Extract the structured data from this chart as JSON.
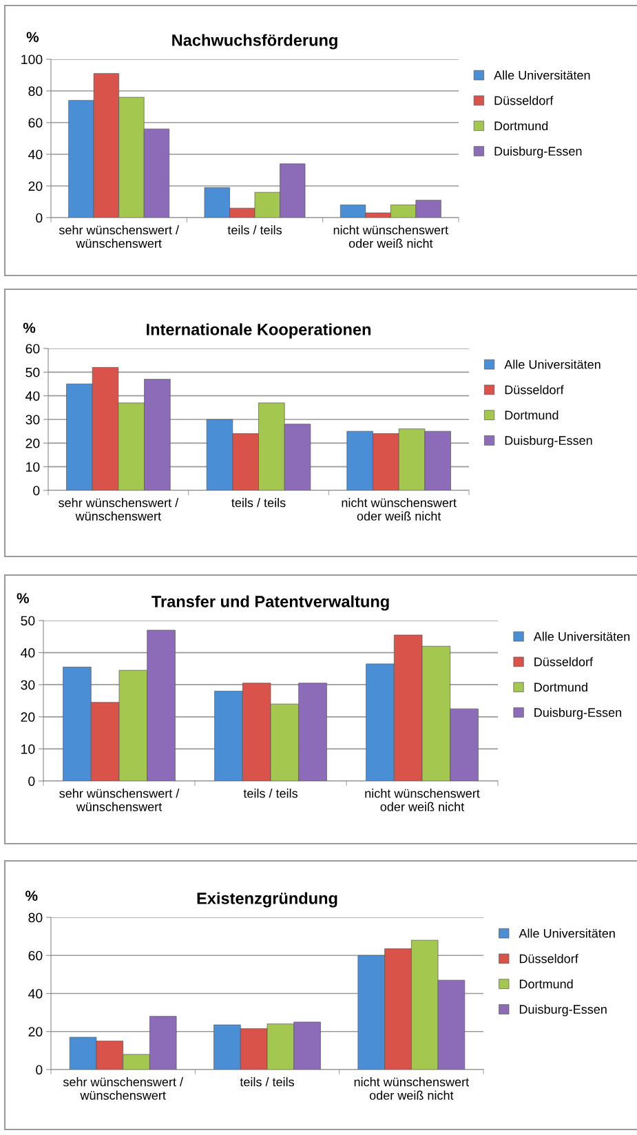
{
  "chart_data": [
    {
      "type": "bar",
      "title": "Nachwuchsförderung",
      "ylabel": "%",
      "categories": [
        "sehr wünschenswert /\nwünschenswert",
        "teils / teils",
        "nicht wünschenswert\noder weiß nicht"
      ],
      "series": [
        {
          "name": "Alle Universitäten",
          "color": "#4a8fd6",
          "values": [
            74,
            19,
            8
          ]
        },
        {
          "name": "Düsseldorf",
          "color": "#d9534a",
          "values": [
            91,
            6,
            3
          ]
        },
        {
          "name": "Dortmund",
          "color": "#a4c74f",
          "values": [
            76,
            16,
            8
          ]
        },
        {
          "name": "Duisburg-Essen",
          "color": "#8c6bb8",
          "values": [
            56,
            34,
            11
          ]
        }
      ],
      "ylim": [
        0,
        100
      ],
      "yticks": [
        0,
        20,
        40,
        60,
        80,
        100
      ],
      "grid": "y",
      "legend": "right"
    },
    {
      "type": "bar",
      "title": "Internationale Kooperationen",
      "ylabel": "%",
      "categories": [
        "sehr wünschenswert /\nwünschenswert",
        "teils / teils",
        "nicht wünschenswert\noder weiß nicht"
      ],
      "series": [
        {
          "name": "Alle Universitäten",
          "color": "#4a8fd6",
          "values": [
            45,
            30,
            25
          ]
        },
        {
          "name": "Düsseldorf",
          "color": "#d9534a",
          "values": [
            52,
            24,
            24
          ]
        },
        {
          "name": "Dortmund",
          "color": "#a4c74f",
          "values": [
            37,
            37,
            26
          ]
        },
        {
          "name": "Duisburg-Essen",
          "color": "#8c6bb8",
          "values": [
            47,
            28,
            25
          ]
        }
      ],
      "ylim": [
        0,
        60
      ],
      "yticks": [
        0,
        10,
        20,
        30,
        40,
        50,
        60
      ],
      "grid": "y",
      "legend": "right"
    },
    {
      "type": "bar",
      "title": "Transfer und Patentverwaltung",
      "ylabel": "%",
      "categories": [
        "sehr wünschenswert /\nwünschenswert",
        "teils / teils",
        "nicht wünschenswert\noder weiß nicht"
      ],
      "series": [
        {
          "name": "Alle Universitäten",
          "color": "#4a8fd6",
          "values": [
            35.5,
            28,
            36.5
          ]
        },
        {
          "name": "Düsseldorf",
          "color": "#d9534a",
          "values": [
            24.5,
            30.5,
            45.5
          ]
        },
        {
          "name": "Dortmund",
          "color": "#a4c74f",
          "values": [
            34.5,
            24,
            42
          ]
        },
        {
          "name": "Duisburg-Essen",
          "color": "#8c6bb8",
          "values": [
            47,
            30.5,
            22.5
          ]
        }
      ],
      "ylim": [
        0,
        50
      ],
      "yticks": [
        0,
        10,
        20,
        30,
        40,
        50
      ],
      "grid": "y",
      "legend": "right"
    },
    {
      "type": "bar",
      "title": "Existenzgründung",
      "ylabel": "%",
      "categories": [
        "sehr wünschenswert /\nwünschenswert",
        "teils / teils",
        "nicht wünschenswert\noder weiß nicht"
      ],
      "series": [
        {
          "name": "Alle Universitäten",
          "color": "#4a8fd6",
          "values": [
            17,
            23.5,
            60
          ]
        },
        {
          "name": "Düsseldorf",
          "color": "#d9534a",
          "values": [
            15,
            21.5,
            63.5
          ]
        },
        {
          "name": "Dortmund",
          "color": "#a4c74f",
          "values": [
            8,
            24,
            68
          ]
        },
        {
          "name": "Duisburg-Essen",
          "color": "#8c6bb8",
          "values": [
            28,
            25,
            47
          ]
        }
      ],
      "ylim": [
        0,
        80
      ],
      "yticks": [
        0,
        20,
        40,
        60,
        80
      ],
      "grid": "y",
      "legend": "right"
    }
  ]
}
